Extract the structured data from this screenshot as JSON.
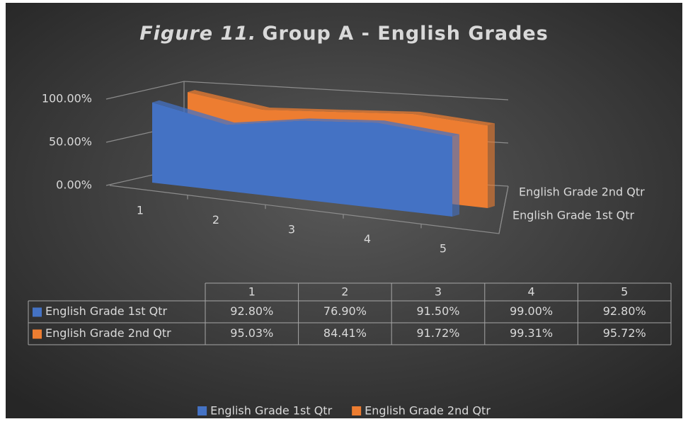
{
  "chart_data": {
    "type": "area3d",
    "figure_label": "Figure 11.",
    "title": "Group A - English Grades",
    "categories": [
      "1",
      "2",
      "3",
      "4",
      "5"
    ],
    "series": [
      {
        "name": "English Grade 1st Qtr",
        "color": "#4472c4",
        "values": [
          92.8,
          76.9,
          91.5,
          99.0,
          92.8
        ],
        "value_labels": [
          "92.80%",
          "76.90%",
          "91.50%",
          "99.00%",
          "92.80%"
        ]
      },
      {
        "name": "English Grade 2nd Qtr",
        "color": "#ed7d31",
        "values": [
          95.03,
          84.41,
          91.72,
          99.31,
          95.72
        ],
        "value_labels": [
          "95.03%",
          "84.41%",
          "91.72%",
          "99.31%",
          "95.72%"
        ]
      }
    ],
    "ylim": [
      0,
      100
    ],
    "yticks": [
      {
        "value": 0,
        "label": "0.00%"
      },
      {
        "value": 50,
        "label": "50.00%"
      },
      {
        "value": 100,
        "label": "100.00%"
      }
    ],
    "grid": true,
    "data_table": true,
    "legend": "bottom"
  }
}
